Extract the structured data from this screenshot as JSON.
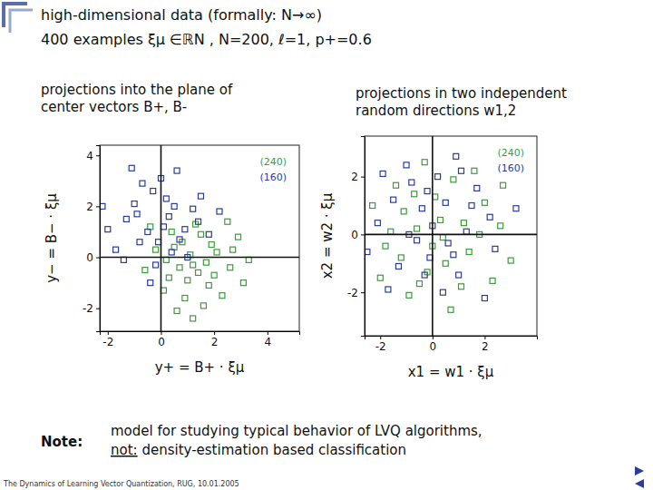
{
  "page": {
    "header": [
      "high-dimensional data (formally: N→∞)",
      "400 examples  ξμ ∈ℝN ,  N=200,  ℓ=1,  p+=0.6"
    ],
    "note_label": "Note:",
    "note_lines": [
      [
        "model for studying typical behavior of LVQ algorithms,"
      ],
      [
        "not:",
        " density-estimation based classification"
      ]
    ],
    "footer": "The Dynamics of Learning Vector Quantization, RUG, 10.01.2005"
  },
  "chart_data": [
    {
      "type": "scatter",
      "title": [
        "projections into the plane of",
        "center vectors  B+, B-"
      ],
      "x_label": "y+ = B+ · ξμ",
      "y_label": "y− = B− · ξμ",
      "xlim": [
        -2.3,
        5.2
      ],
      "ylim": [
        -2.9,
        4.4
      ],
      "xticks": [
        -2,
        0,
        2,
        4
      ],
      "yticks": [
        -2,
        0,
        2,
        4
      ],
      "legend": "upper right",
      "series": [
        {
          "name": "(240)",
          "color": "#3f9a3f",
          "marker": "square",
          "x": [
            1.2,
            0.5,
            2.1,
            1.8,
            0.3,
            1.5,
            2.6,
            0.9,
            1.1,
            -0.2,
            2.9,
            1.7,
            0.7,
            2.3,
            1.3,
            0.1,
            3.3,
            1.9,
            0.6,
            1.0,
            2.5,
            -0.6,
            1.6,
            0.4,
            2.0,
            3.1,
            0.8,
            1.4,
            -0.4,
            2.7,
            1.2,
            0.2
          ],
          "values": [
            -0.3,
            0.4,
            0.2,
            -1.1,
            -0.8,
            0.9,
            -0.4,
            -1.6,
            0.1,
            0.3,
            0.8,
            -0.2,
            -0.4,
            -1.5,
            1.3,
            -1.3,
            -0.1,
            0.5,
            -2.1,
            -0.9,
            1.4,
            -0.5,
            -1.9,
            1.0,
            -0.7,
            -1.0,
            0.6,
            -0.6,
            1.2,
            0.3,
            -2.4,
            -0.1
          ]
        },
        {
          "name": "(160)",
          "color": "#2b3c9e",
          "marker": "square",
          "x": [
            0.1,
            -0.8,
            0.5,
            -1.3,
            0.9,
            -0.3,
            0.4,
            -1.7,
            1.2,
            -0.5,
            0.0,
            -1.0,
            0.7,
            -0.2,
            1.5,
            -2.0,
            0.3,
            -0.7,
            1.8,
            -1.4,
            0.6,
            -0.1,
            1.0,
            -2.2,
            0.2,
            -0.9,
            1.4,
            -0.4,
            2.2,
            -1.1
          ],
          "values": [
            1.2,
            0.6,
            2.0,
            1.5,
            1.1,
            2.6,
            0.2,
            0.3,
            1.9,
            1.0,
            3.1,
            2.1,
            0.7,
            -0.3,
            2.4,
            1.1,
            1.6,
            2.9,
            0.9,
            -0.1,
            3.4,
            0.6,
            0.0,
            2.0,
            2.3,
            1.7,
            1.4,
            -1.0,
            1.8,
            3.5
          ]
        }
      ]
    },
    {
      "type": "scatter",
      "title": [
        "projections in two independent",
        "random directions  w1,2"
      ],
      "x_label": "x1 = w1 · ξμ",
      "y_label": "x2 = w2 · ξμ",
      "xlim": [
        -2.6,
        4.0
      ],
      "ylim": [
        -3.5,
        3.4
      ],
      "xticks": [
        -2,
        0,
        2
      ],
      "yticks": [
        -2,
        0,
        2
      ],
      "legend": "upper right",
      "series": [
        {
          "name": "(240)",
          "color": "#3f9a3f",
          "marker": "square",
          "x": [
            0.3,
            -1.1,
            1.4,
            -0.2,
            2.0,
            -1.8,
            0.8,
            -0.6,
            1.1,
            -2.3,
            0.0,
            2.6,
            -0.9,
            1.6,
            -1.4,
            0.5,
            3.0,
            -0.3,
            1.2,
            -2.0,
            0.7,
            -1.2,
            2.3,
            0.1,
            -0.7,
            1.8,
            -1.6,
            0.4,
            2.7,
            -0.5
          ],
          "values": [
            0.5,
            0.8,
            -0.6,
            -1.3,
            1.1,
            -0.4,
            1.9,
            0.2,
            -1.8,
            1.0,
            -0.4,
            0.3,
            -2.1,
            2.2,
            1.7,
            -1.0,
            -0.9,
            2.5,
            0.4,
            -1.5,
            -2.6,
            -0.8,
            -1.6,
            1.3,
            1.4,
            0.0,
            0.1,
            -0.1,
            1.7,
            -1.7
          ]
        },
        {
          "name": "(160)",
          "color": "#2b3c9e",
          "marker": "square",
          "x": [
            -0.4,
            0.6,
            -1.3,
            1.5,
            0.2,
            -2.1,
            1.0,
            -0.8,
            2.2,
            -0.1,
            0.9,
            -1.7,
            1.3,
            -0.6,
            2.4,
            -1.0,
            0.4,
            -2.5,
            1.7,
            0.0,
            -1.5,
            0.8,
            3.2,
            -0.3,
            1.1,
            -0.9,
            0.5,
            -1.9,
            2.0,
            -0.2
          ],
          "values": [
            0.9,
            -0.3,
            -1.1,
            1.0,
            2.0,
            0.4,
            -1.4,
            1.8,
            0.6,
            -0.8,
            2.7,
            -1.9,
            0.1,
            -0.2,
            -0.5,
            2.4,
            -2.0,
            -0.6,
            1.6,
            0.3,
            1.2,
            -0.7,
            0.9,
            -1.4,
            2.2,
            0.0,
            1.1,
            2.1,
            -2.2,
            1.5
          ]
        }
      ]
    }
  ]
}
